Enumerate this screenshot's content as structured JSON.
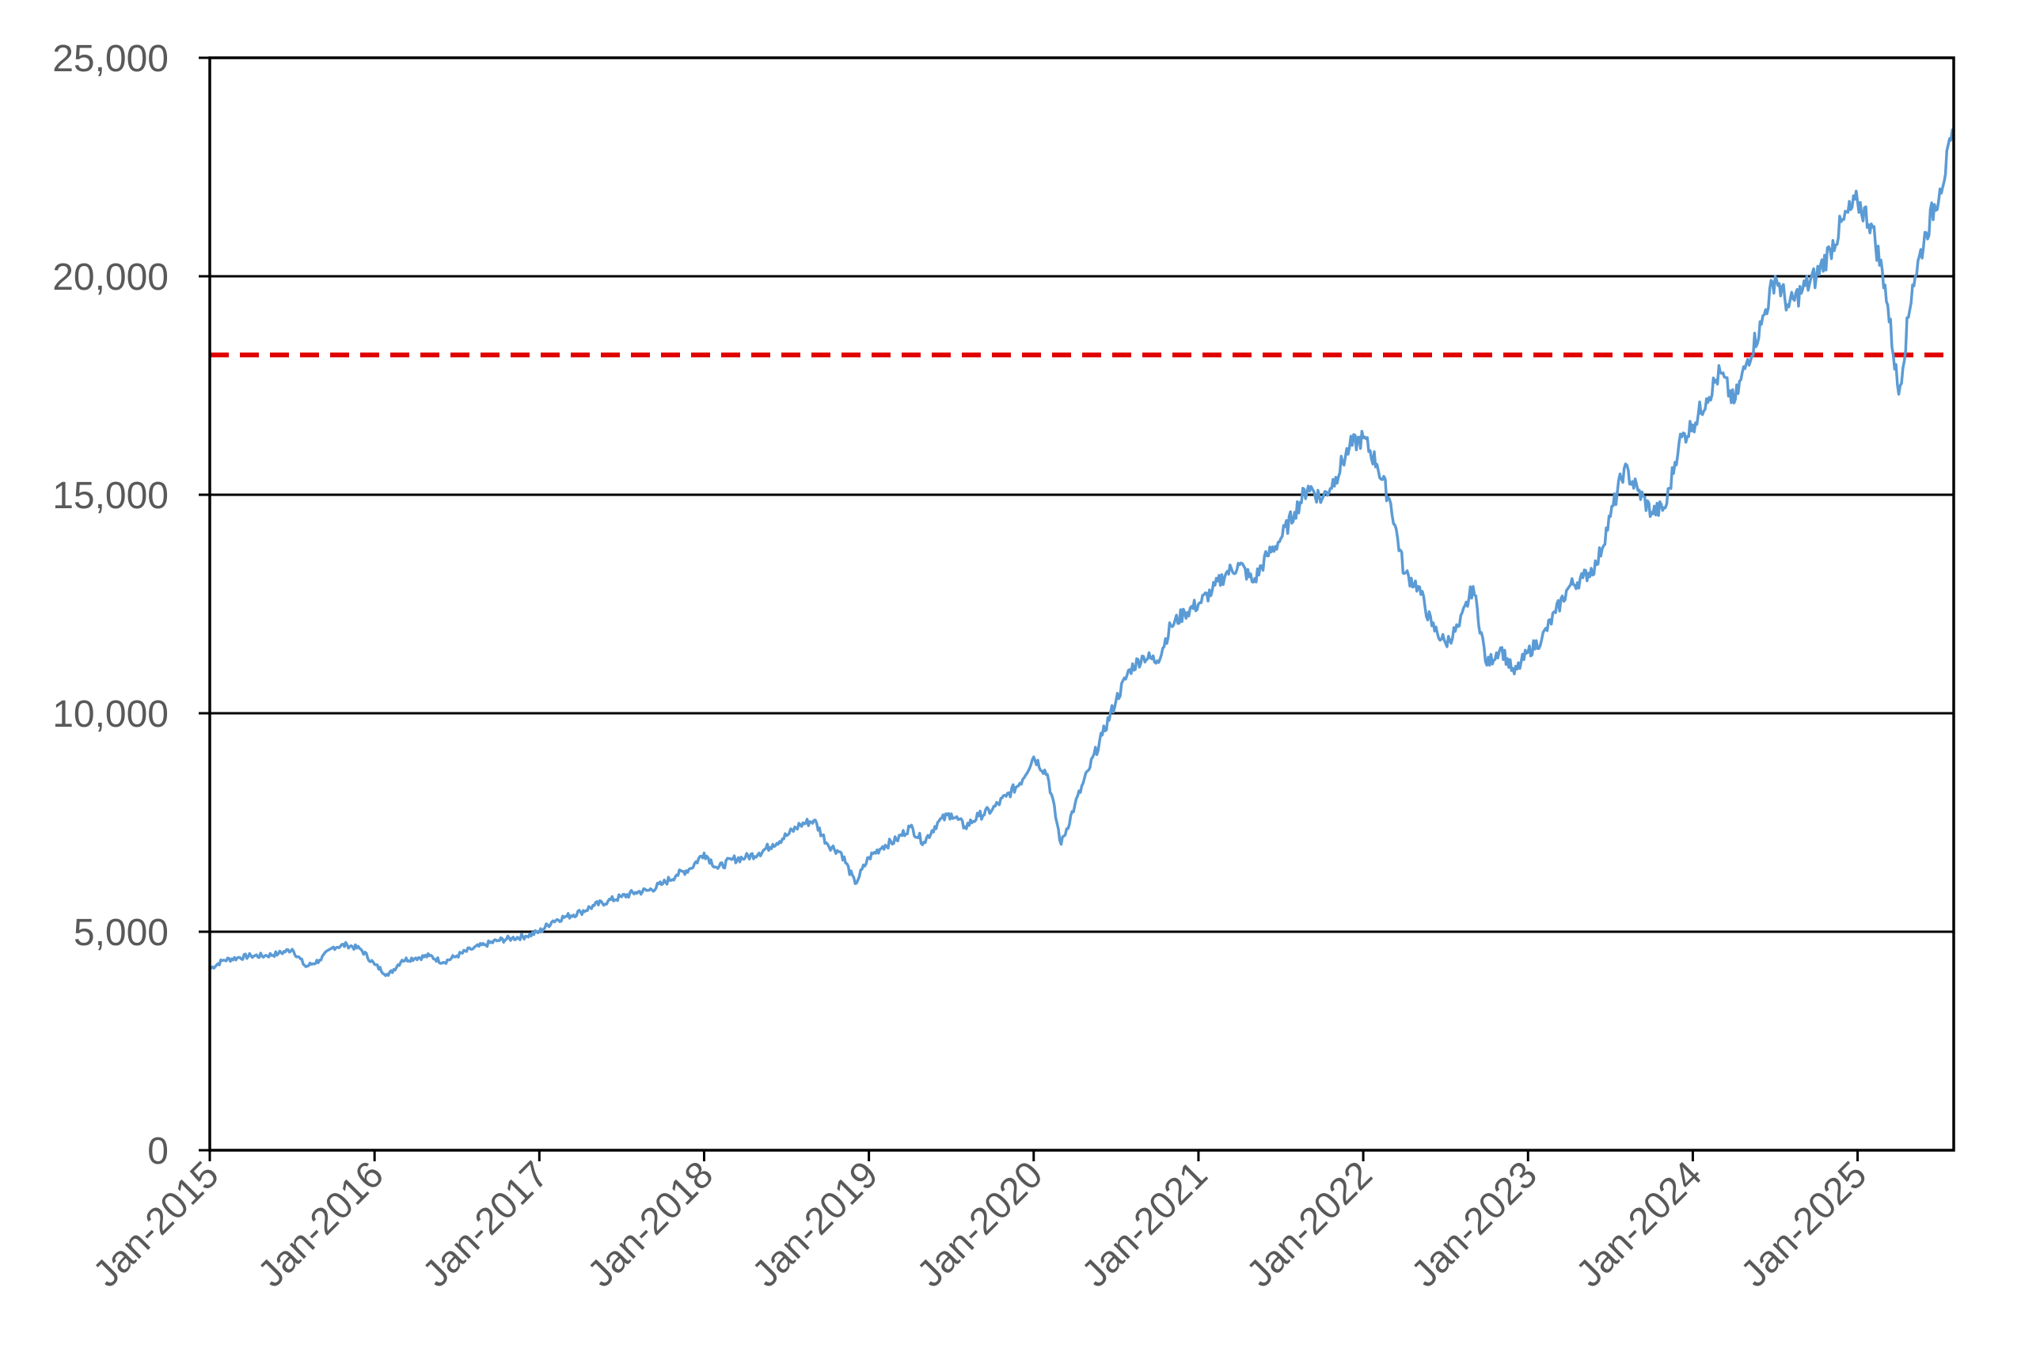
{
  "chart_data": {
    "type": "line",
    "title": "",
    "xlabel": "",
    "ylabel": "",
    "ylim": [
      0,
      25000
    ],
    "y_ticks": [
      0,
      5000,
      10000,
      15000,
      20000,
      25000
    ],
    "y_tick_labels": [
      "0",
      "5,000",
      "10,000",
      "15,000",
      "20,000",
      "25,000"
    ],
    "x_range": [
      "2015-01",
      "2025-08"
    ],
    "x_ticks": [
      "2015-01",
      "2016-01",
      "2017-01",
      "2018-01",
      "2019-01",
      "2020-01",
      "2021-01",
      "2022-01",
      "2023-01",
      "2024-01",
      "2025-01"
    ],
    "x_tick_labels": [
      "Jan-2015",
      "Jan-2016",
      "Jan-2017",
      "Jan-2018",
      "Jan-2019",
      "Jan-2020",
      "Jan-2021",
      "Jan-2022",
      "Jan-2023",
      "Jan-2024",
      "Jan-2025"
    ],
    "grid": "horizontal",
    "legend": "none",
    "reference_line": {
      "y": 18200,
      "color": "#e00000",
      "style": "dashed"
    },
    "colors": {
      "series": "#5b9bd5",
      "gridline": "#000000",
      "axis": "#000000",
      "tick_label": "#595959"
    },
    "series": [
      {
        "x": [
          "2015-01",
          "2015-02",
          "2015-03",
          "2015-04",
          "2015-05",
          "2015-06",
          "2015-07",
          "2015-08",
          "2015-09",
          "2015-10",
          "2015-11",
          "2015-12",
          "2016-01",
          "2016-02",
          "2016-03",
          "2016-04",
          "2016-05",
          "2016-06",
          "2016-07",
          "2016-08",
          "2016-09",
          "2016-10",
          "2016-11",
          "2016-12",
          "2017-01",
          "2017-02",
          "2017-03",
          "2017-04",
          "2017-05",
          "2017-06",
          "2017-07",
          "2017-08",
          "2017-09",
          "2017-10",
          "2017-11",
          "2017-12",
          "2018-01",
          "2018-02",
          "2018-03",
          "2018-04",
          "2018-05",
          "2018-06",
          "2018-07",
          "2018-08",
          "2018-09",
          "2018-10",
          "2018-11",
          "2018-12",
          "2019-01",
          "2019-02",
          "2019-03",
          "2019-04",
          "2019-05",
          "2019-06",
          "2019-07",
          "2019-08",
          "2019-09",
          "2019-10",
          "2019-11",
          "2019-12",
          "2020-01",
          "2020-02",
          "2020-03",
          "2020-04",
          "2020-05",
          "2020-06",
          "2020-07",
          "2020-08",
          "2020-09",
          "2020-10",
          "2020-11",
          "2020-12",
          "2021-01",
          "2021-02",
          "2021-03",
          "2021-04",
          "2021-05",
          "2021-06",
          "2021-07",
          "2021-08",
          "2021-09",
          "2021-10",
          "2021-11",
          "2021-12",
          "2022-01",
          "2022-02",
          "2022-03",
          "2022-04",
          "2022-05",
          "2022-06",
          "2022-07",
          "2022-08",
          "2022-09",
          "2022-10",
          "2022-11",
          "2022-12",
          "2023-01",
          "2023-02",
          "2023-03",
          "2023-04",
          "2023-05",
          "2023-06",
          "2023-07",
          "2023-08",
          "2023-09",
          "2023-10",
          "2023-11",
          "2023-12",
          "2024-01",
          "2024-02",
          "2024-03",
          "2024-04",
          "2024-05",
          "2024-06",
          "2024-07",
          "2024-08",
          "2024-09",
          "2024-10",
          "2024-11",
          "2024-12",
          "2025-01",
          "2025-02",
          "2025-03",
          "2025-04",
          "2025-05",
          "2025-06",
          "2025-07",
          "2025-08"
        ],
        "values": [
          4150,
          4350,
          4400,
          4450,
          4450,
          4500,
          4600,
          4200,
          4350,
          4650,
          4700,
          4600,
          4250,
          4000,
          4350,
          4400,
          4450,
          4300,
          4450,
          4600,
          4700,
          4800,
          4850,
          4900,
          5000,
          5250,
          5350,
          5450,
          5600,
          5700,
          5800,
          5900,
          5950,
          6100,
          6300,
          6450,
          6800,
          6450,
          6650,
          6700,
          6800,
          7000,
          7200,
          7450,
          7550,
          7000,
          6800,
          6100,
          6700,
          6950,
          7100,
          7400,
          7050,
          7500,
          7700,
          7400,
          7650,
          7800,
          8100,
          8400,
          9000,
          8600,
          7000,
          7900,
          8700,
          9500,
          10300,
          11000,
          11300,
          11200,
          12000,
          12300,
          12500,
          12800,
          13200,
          13400,
          13000,
          13600,
          14000,
          14600,
          15200,
          14900,
          15400,
          16100,
          16300,
          15700,
          14800,
          13200,
          12900,
          12000,
          11600,
          12000,
          12900,
          11100,
          11500,
          10900,
          11400,
          11700,
          12300,
          12900,
          13100,
          13400,
          14500,
          15600,
          15100,
          14600,
          14700,
          16200,
          16600,
          17200,
          17800,
          17100,
          18100,
          18900,
          20000,
          19300,
          19700,
          20000,
          20600,
          21300,
          21700,
          21200,
          19800,
          17300,
          19800,
          21000,
          22000,
          23200
        ]
      }
    ]
  }
}
